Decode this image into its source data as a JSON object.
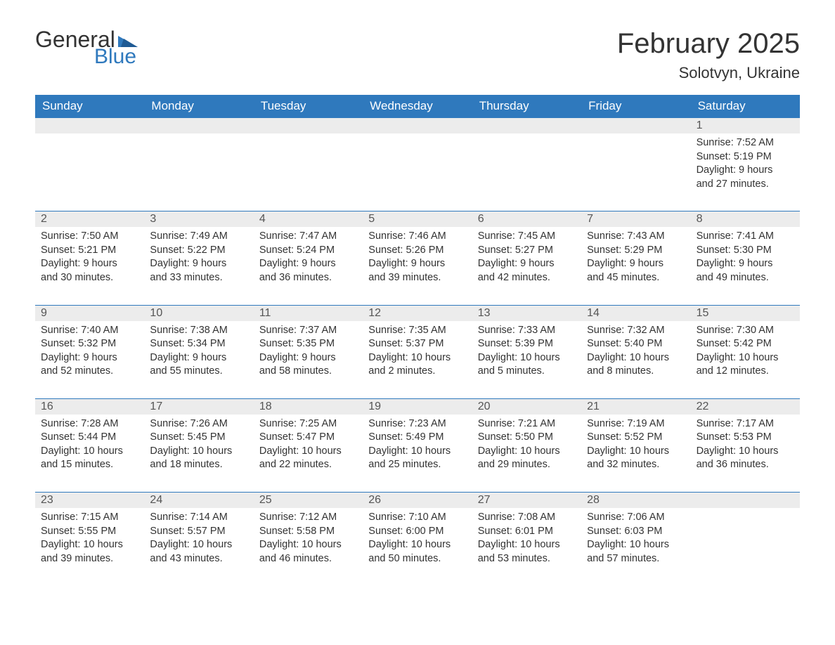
{
  "brand": {
    "word1": "General",
    "word2": "Blue",
    "text_color": "#333333",
    "accent_color": "#2f79bd"
  },
  "title": "February 2025",
  "location": "Solotvyn, Ukraine",
  "colors": {
    "header_bg": "#2f79bd",
    "header_text": "#ffffff",
    "daynum_bg": "#ececec",
    "cell_border": "#2f79bd",
    "body_text": "#333333",
    "background": "#ffffff"
  },
  "weekdays": [
    "Sunday",
    "Monday",
    "Tuesday",
    "Wednesday",
    "Thursday",
    "Friday",
    "Saturday"
  ],
  "weeks": [
    [
      null,
      null,
      null,
      null,
      null,
      null,
      {
        "n": "1",
        "sunrise": "Sunrise: 7:52 AM",
        "sunset": "Sunset: 5:19 PM",
        "day1": "Daylight: 9 hours",
        "day2": "and 27 minutes."
      }
    ],
    [
      {
        "n": "2",
        "sunrise": "Sunrise: 7:50 AM",
        "sunset": "Sunset: 5:21 PM",
        "day1": "Daylight: 9 hours",
        "day2": "and 30 minutes."
      },
      {
        "n": "3",
        "sunrise": "Sunrise: 7:49 AM",
        "sunset": "Sunset: 5:22 PM",
        "day1": "Daylight: 9 hours",
        "day2": "and 33 minutes."
      },
      {
        "n": "4",
        "sunrise": "Sunrise: 7:47 AM",
        "sunset": "Sunset: 5:24 PM",
        "day1": "Daylight: 9 hours",
        "day2": "and 36 minutes."
      },
      {
        "n": "5",
        "sunrise": "Sunrise: 7:46 AM",
        "sunset": "Sunset: 5:26 PM",
        "day1": "Daylight: 9 hours",
        "day2": "and 39 minutes."
      },
      {
        "n": "6",
        "sunrise": "Sunrise: 7:45 AM",
        "sunset": "Sunset: 5:27 PM",
        "day1": "Daylight: 9 hours",
        "day2": "and 42 minutes."
      },
      {
        "n": "7",
        "sunrise": "Sunrise: 7:43 AM",
        "sunset": "Sunset: 5:29 PM",
        "day1": "Daylight: 9 hours",
        "day2": "and 45 minutes."
      },
      {
        "n": "8",
        "sunrise": "Sunrise: 7:41 AM",
        "sunset": "Sunset: 5:30 PM",
        "day1": "Daylight: 9 hours",
        "day2": "and 49 minutes."
      }
    ],
    [
      {
        "n": "9",
        "sunrise": "Sunrise: 7:40 AM",
        "sunset": "Sunset: 5:32 PM",
        "day1": "Daylight: 9 hours",
        "day2": "and 52 minutes."
      },
      {
        "n": "10",
        "sunrise": "Sunrise: 7:38 AM",
        "sunset": "Sunset: 5:34 PM",
        "day1": "Daylight: 9 hours",
        "day2": "and 55 minutes."
      },
      {
        "n": "11",
        "sunrise": "Sunrise: 7:37 AM",
        "sunset": "Sunset: 5:35 PM",
        "day1": "Daylight: 9 hours",
        "day2": "and 58 minutes."
      },
      {
        "n": "12",
        "sunrise": "Sunrise: 7:35 AM",
        "sunset": "Sunset: 5:37 PM",
        "day1": "Daylight: 10 hours",
        "day2": "and 2 minutes."
      },
      {
        "n": "13",
        "sunrise": "Sunrise: 7:33 AM",
        "sunset": "Sunset: 5:39 PM",
        "day1": "Daylight: 10 hours",
        "day2": "and 5 minutes."
      },
      {
        "n": "14",
        "sunrise": "Sunrise: 7:32 AM",
        "sunset": "Sunset: 5:40 PM",
        "day1": "Daylight: 10 hours",
        "day2": "and 8 minutes."
      },
      {
        "n": "15",
        "sunrise": "Sunrise: 7:30 AM",
        "sunset": "Sunset: 5:42 PM",
        "day1": "Daylight: 10 hours",
        "day2": "and 12 minutes."
      }
    ],
    [
      {
        "n": "16",
        "sunrise": "Sunrise: 7:28 AM",
        "sunset": "Sunset: 5:44 PM",
        "day1": "Daylight: 10 hours",
        "day2": "and 15 minutes."
      },
      {
        "n": "17",
        "sunrise": "Sunrise: 7:26 AM",
        "sunset": "Sunset: 5:45 PM",
        "day1": "Daylight: 10 hours",
        "day2": "and 18 minutes."
      },
      {
        "n": "18",
        "sunrise": "Sunrise: 7:25 AM",
        "sunset": "Sunset: 5:47 PM",
        "day1": "Daylight: 10 hours",
        "day2": "and 22 minutes."
      },
      {
        "n": "19",
        "sunrise": "Sunrise: 7:23 AM",
        "sunset": "Sunset: 5:49 PM",
        "day1": "Daylight: 10 hours",
        "day2": "and 25 minutes."
      },
      {
        "n": "20",
        "sunrise": "Sunrise: 7:21 AM",
        "sunset": "Sunset: 5:50 PM",
        "day1": "Daylight: 10 hours",
        "day2": "and 29 minutes."
      },
      {
        "n": "21",
        "sunrise": "Sunrise: 7:19 AM",
        "sunset": "Sunset: 5:52 PM",
        "day1": "Daylight: 10 hours",
        "day2": "and 32 minutes."
      },
      {
        "n": "22",
        "sunrise": "Sunrise: 7:17 AM",
        "sunset": "Sunset: 5:53 PM",
        "day1": "Daylight: 10 hours",
        "day2": "and 36 minutes."
      }
    ],
    [
      {
        "n": "23",
        "sunrise": "Sunrise: 7:15 AM",
        "sunset": "Sunset: 5:55 PM",
        "day1": "Daylight: 10 hours",
        "day2": "and 39 minutes."
      },
      {
        "n": "24",
        "sunrise": "Sunrise: 7:14 AM",
        "sunset": "Sunset: 5:57 PM",
        "day1": "Daylight: 10 hours",
        "day2": "and 43 minutes."
      },
      {
        "n": "25",
        "sunrise": "Sunrise: 7:12 AM",
        "sunset": "Sunset: 5:58 PM",
        "day1": "Daylight: 10 hours",
        "day2": "and 46 minutes."
      },
      {
        "n": "26",
        "sunrise": "Sunrise: 7:10 AM",
        "sunset": "Sunset: 6:00 PM",
        "day1": "Daylight: 10 hours",
        "day2": "and 50 minutes."
      },
      {
        "n": "27",
        "sunrise": "Sunrise: 7:08 AM",
        "sunset": "Sunset: 6:01 PM",
        "day1": "Daylight: 10 hours",
        "day2": "and 53 minutes."
      },
      {
        "n": "28",
        "sunrise": "Sunrise: 7:06 AM",
        "sunset": "Sunset: 6:03 PM",
        "day1": "Daylight: 10 hours",
        "day2": "and 57 minutes."
      },
      null
    ]
  ]
}
